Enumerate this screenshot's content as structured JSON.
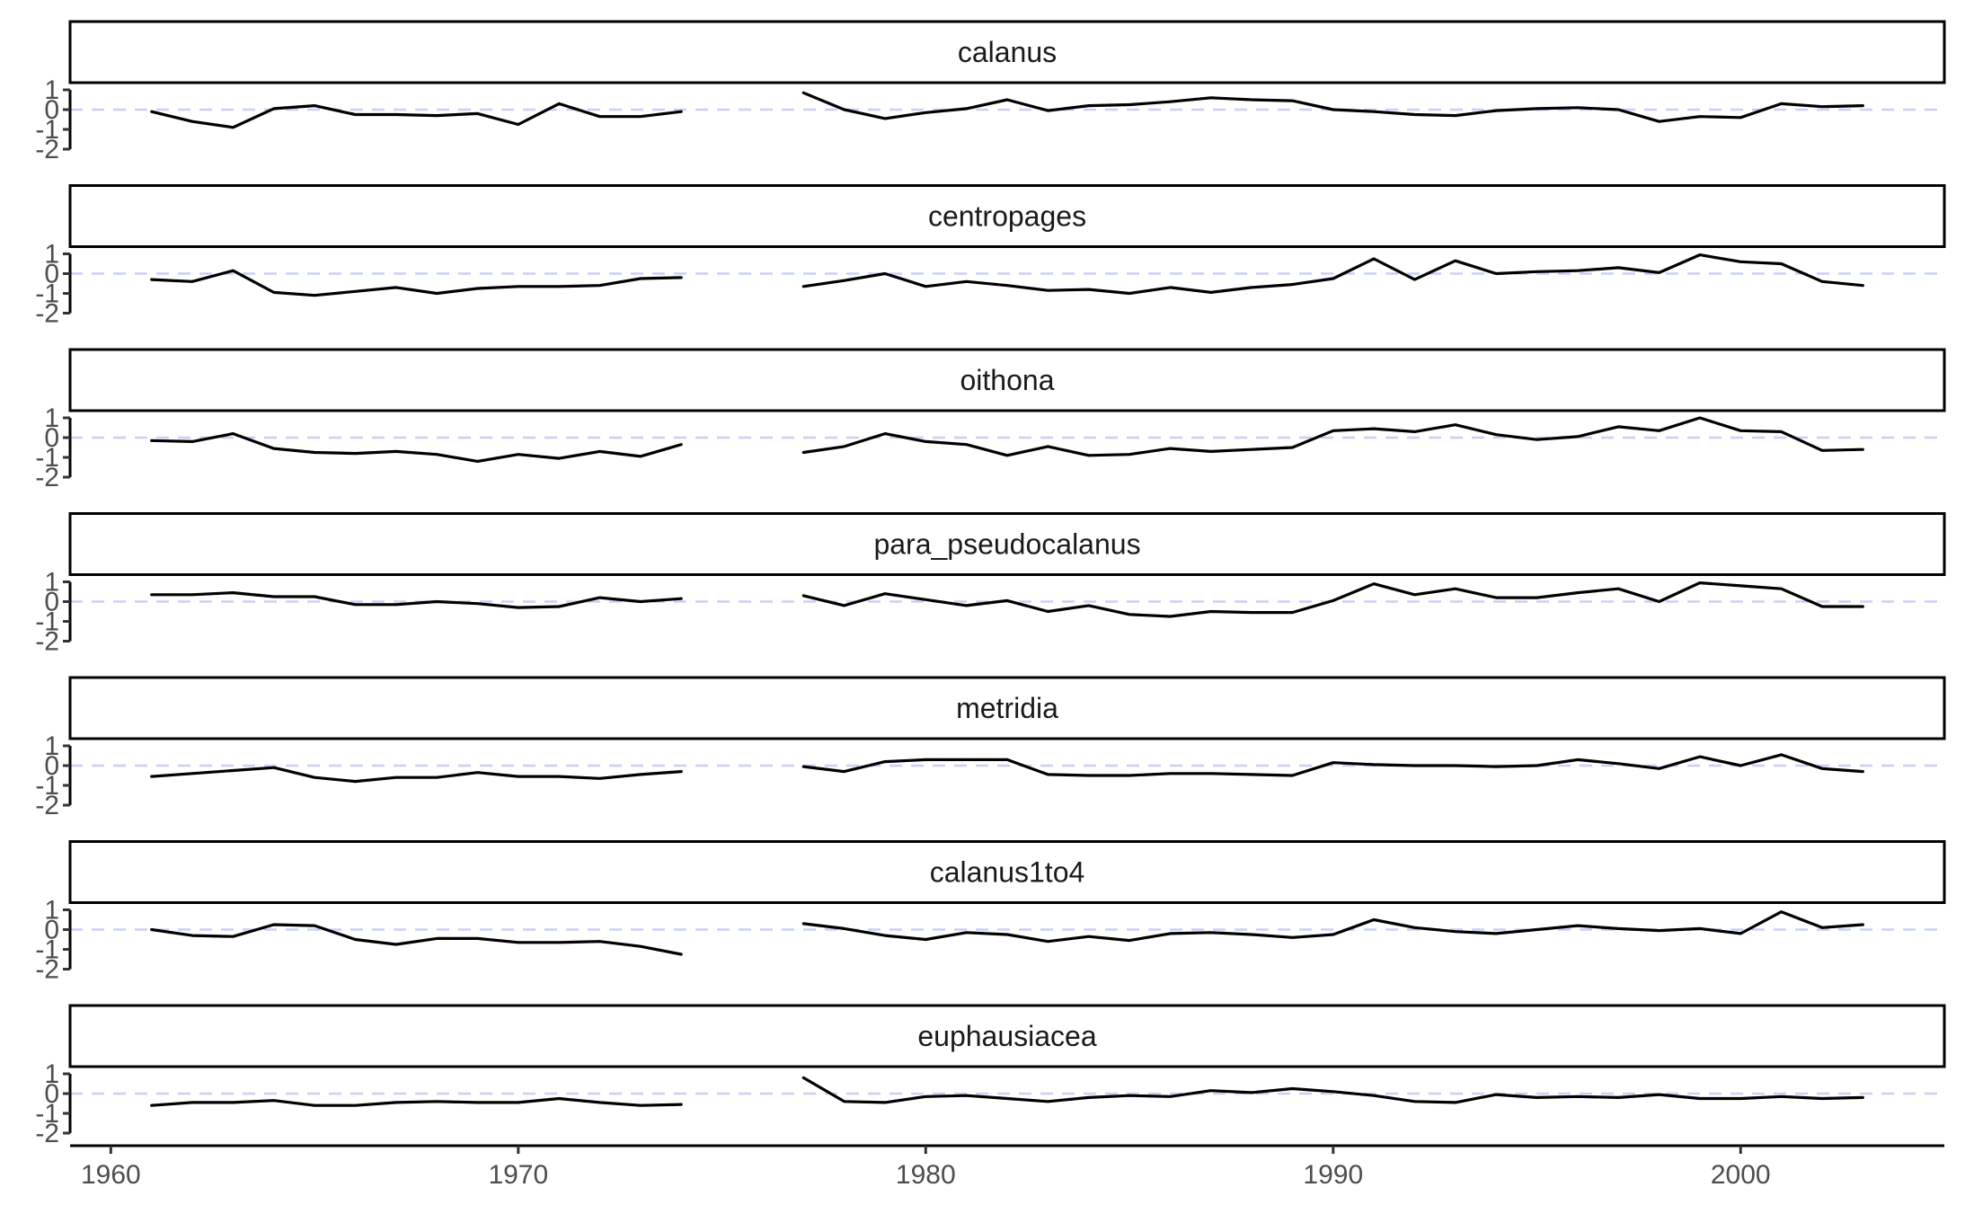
{
  "chart_data": {
    "type": "line",
    "layout": "faceted-vertical",
    "x_range": [
      1959,
      2005
    ],
    "x_ticks": [
      1960,
      1970,
      1980,
      1990,
      2000
    ],
    "y_range": [
      -2,
      1
    ],
    "y_ticks": [
      -2,
      -1,
      0,
      1
    ],
    "y_tick_labels": [
      "-2",
      "-1",
      "0",
      "1"
    ],
    "reference_line": {
      "y": 0,
      "style": "dashed",
      "color": "#c9d0f3"
    },
    "line_color": "#000000",
    "grid": false,
    "panels": [
      {
        "name": "calanus",
        "segments": [
          {
            "x": [
              1961,
              1962,
              1963,
              1964,
              1965,
              1966,
              1967,
              1968,
              1969,
              1970,
              1971,
              1972,
              1973,
              1974
            ],
            "y": [
              -0.1,
              -0.6,
              -0.9,
              0.05,
              0.2,
              -0.25,
              -0.25,
              -0.3,
              -0.2,
              -0.75,
              0.3,
              -0.35,
              -0.35,
              -0.1
            ]
          },
          {
            "x": [
              1977,
              1978,
              1979,
              1980,
              1981,
              1982,
              1983,
              1984,
              1985,
              1986,
              1987,
              1988,
              1989,
              1990,
              1991,
              1992,
              1993,
              1994,
              1995,
              1996,
              1997,
              1998,
              1999,
              2000,
              2001,
              2002,
              2003
            ],
            "y": [
              0.85,
              0.0,
              -0.45,
              -0.15,
              0.05,
              0.5,
              -0.05,
              0.2,
              0.25,
              0.4,
              0.6,
              0.5,
              0.45,
              0.0,
              -0.1,
              -0.25,
              -0.3,
              -0.05,
              0.05,
              0.1,
              0.0,
              -0.6,
              -0.35,
              -0.4,
              0.3,
              0.15,
              0.2
            ]
          }
        ]
      },
      {
        "name": "centropages",
        "segments": [
          {
            "x": [
              1961,
              1962,
              1963,
              1964,
              1965,
              1966,
              1967,
              1968,
              1969,
              1970,
              1971,
              1972,
              1973,
              1974
            ],
            "y": [
              -0.3,
              -0.4,
              0.15,
              -0.95,
              -1.1,
              -0.9,
              -0.7,
              -1.0,
              -0.75,
              -0.65,
              -0.65,
              -0.6,
              -0.25,
              -0.2
            ]
          },
          {
            "x": [
              1977,
              1978,
              1979,
              1980,
              1981,
              1982,
              1983,
              1984,
              1985,
              1986,
              1987,
              1988,
              1989,
              1990,
              1991,
              1992,
              1993,
              1994,
              1995,
              1996,
              1997,
              1998,
              1999,
              2000,
              2001,
              2002,
              2003
            ],
            "y": [
              -0.65,
              -0.35,
              0.0,
              -0.65,
              -0.4,
              -0.6,
              -0.85,
              -0.8,
              -1.0,
              -0.7,
              -0.95,
              -0.7,
              -0.55,
              -0.25,
              0.75,
              -0.3,
              0.65,
              0.0,
              0.1,
              0.15,
              0.3,
              0.05,
              0.95,
              0.6,
              0.5,
              -0.4,
              -0.6
            ]
          }
        ]
      },
      {
        "name": "oithona",
        "segments": [
          {
            "x": [
              1961,
              1962,
              1963,
              1964,
              1965,
              1966,
              1967,
              1968,
              1969,
              1970,
              1971,
              1972,
              1973,
              1974
            ],
            "y": [
              -0.15,
              -0.2,
              0.2,
              -0.55,
              -0.75,
              -0.8,
              -0.7,
              -0.85,
              -1.2,
              -0.85,
              -1.05,
              -0.7,
              -0.95,
              -0.35
            ]
          },
          {
            "x": [
              1977,
              1978,
              1979,
              1980,
              1981,
              1982,
              1983,
              1984,
              1985,
              1986,
              1987,
              1988,
              1989,
              1990,
              1991,
              1992,
              1993,
              1994,
              1995,
              1996,
              1997,
              1998,
              1999,
              2000,
              2001,
              2002,
              2003
            ],
            "y": [
              -0.75,
              -0.45,
              0.2,
              -0.2,
              -0.35,
              -0.9,
              -0.45,
              -0.9,
              -0.85,
              -0.55,
              -0.7,
              -0.6,
              -0.5,
              0.35,
              0.45,
              0.3,
              0.65,
              0.15,
              -0.1,
              0.05,
              0.55,
              0.35,
              1.0,
              0.35,
              0.3,
              -0.65,
              -0.6
            ]
          }
        ]
      },
      {
        "name": "para_pseudocalanus",
        "segments": [
          {
            "x": [
              1961,
              1962,
              1963,
              1964,
              1965,
              1966,
              1967,
              1968,
              1969,
              1970,
              1971,
              1972,
              1973,
              1974
            ],
            "y": [
              0.35,
              0.35,
              0.45,
              0.25,
              0.25,
              -0.15,
              -0.15,
              0.0,
              -0.1,
              -0.3,
              -0.25,
              0.2,
              0.0,
              0.15
            ]
          },
          {
            "x": [
              1977,
              1978,
              1979,
              1980,
              1981,
              1982,
              1983,
              1984,
              1985,
              1986,
              1987,
              1988,
              1989,
              1990,
              1991,
              1992,
              1993,
              1994,
              1995,
              1996,
              1997,
              1998,
              1999,
              2000,
              2001,
              2002,
              2003
            ],
            "y": [
              0.3,
              -0.2,
              0.4,
              0.1,
              -0.2,
              0.05,
              -0.5,
              -0.2,
              -0.65,
              -0.75,
              -0.5,
              -0.55,
              -0.55,
              0.05,
              0.9,
              0.35,
              0.65,
              0.2,
              0.2,
              0.45,
              0.65,
              0.0,
              0.95,
              0.8,
              0.65,
              -0.25,
              -0.25
            ]
          }
        ]
      },
      {
        "name": "metridia",
        "segments": [
          {
            "x": [
              1961,
              1962,
              1963,
              1964,
              1965,
              1966,
              1967,
              1968,
              1969,
              1970,
              1971,
              1972,
              1973,
              1974
            ],
            "y": [
              -0.55,
              -0.4,
              -0.25,
              -0.1,
              -0.6,
              -0.8,
              -0.6,
              -0.6,
              -0.35,
              -0.55,
              -0.55,
              -0.65,
              -0.45,
              -0.3
            ]
          },
          {
            "x": [
              1977,
              1978,
              1979,
              1980,
              1981,
              1982,
              1983,
              1984,
              1985,
              1986,
              1987,
              1988,
              1989,
              1990,
              1991,
              1992,
              1993,
              1994,
              1995,
              1996,
              1997,
              1998,
              1999,
              2000,
              2001,
              2002,
              2003
            ],
            "y": [
              -0.05,
              -0.3,
              0.2,
              0.3,
              0.3,
              0.3,
              -0.45,
              -0.5,
              -0.5,
              -0.4,
              -0.4,
              -0.45,
              -0.5,
              0.15,
              0.05,
              0.0,
              0.0,
              -0.05,
              0.0,
              0.3,
              0.1,
              -0.15,
              0.45,
              0.0,
              0.55,
              -0.15,
              -0.3
            ]
          }
        ]
      },
      {
        "name": "calanus1to4",
        "segments": [
          {
            "x": [
              1961,
              1962,
              1963,
              1964,
              1965,
              1966,
              1967,
              1968,
              1969,
              1970,
              1971,
              1972,
              1973,
              1974
            ],
            "y": [
              0.0,
              -0.3,
              -0.35,
              0.25,
              0.2,
              -0.5,
              -0.75,
              -0.45,
              -0.45,
              -0.65,
              -0.65,
              -0.6,
              -0.85,
              -1.25
            ]
          },
          {
            "x": [
              1977,
              1978,
              1979,
              1980,
              1981,
              1982,
              1983,
              1984,
              1985,
              1986,
              1987,
              1988,
              1989,
              1990,
              1991,
              1992,
              1993,
              1994,
              1995,
              1996,
              1997,
              1998,
              1999,
              2000,
              2001,
              2002,
              2003
            ],
            "y": [
              0.3,
              0.05,
              -0.3,
              -0.5,
              -0.15,
              -0.25,
              -0.6,
              -0.35,
              -0.55,
              -0.2,
              -0.15,
              -0.25,
              -0.4,
              -0.25,
              0.5,
              0.1,
              -0.1,
              -0.2,
              0.0,
              0.2,
              0.05,
              -0.05,
              0.05,
              -0.2,
              0.9,
              0.1,
              0.25
            ]
          }
        ]
      },
      {
        "name": "euphausiacea",
        "segments": [
          {
            "x": [
              1961,
              1962,
              1963,
              1964,
              1965,
              1966,
              1967,
              1968,
              1969,
              1970,
              1971,
              1972,
              1973,
              1974
            ],
            "y": [
              -0.6,
              -0.45,
              -0.45,
              -0.35,
              -0.6,
              -0.6,
              -0.45,
              -0.4,
              -0.45,
              -0.45,
              -0.25,
              -0.45,
              -0.6,
              -0.55
            ]
          },
          {
            "x": [
              1977,
              1978,
              1979,
              1980,
              1981,
              1982,
              1983,
              1984,
              1985,
              1986,
              1987,
              1988,
              1989,
              1990,
              1991,
              1992,
              1993,
              1994,
              1995,
              1996,
              1997,
              1998,
              1999,
              2000,
              2001,
              2002,
              2003
            ],
            "y": [
              0.8,
              -0.4,
              -0.45,
              -0.15,
              -0.1,
              -0.25,
              -0.4,
              -0.2,
              -0.1,
              -0.15,
              0.15,
              0.05,
              0.25,
              0.1,
              -0.1,
              -0.4,
              -0.45,
              -0.05,
              -0.2,
              -0.15,
              -0.2,
              -0.05,
              -0.25,
              -0.25,
              -0.15,
              -0.25,
              -0.2
            ]
          }
        ]
      }
    ]
  }
}
